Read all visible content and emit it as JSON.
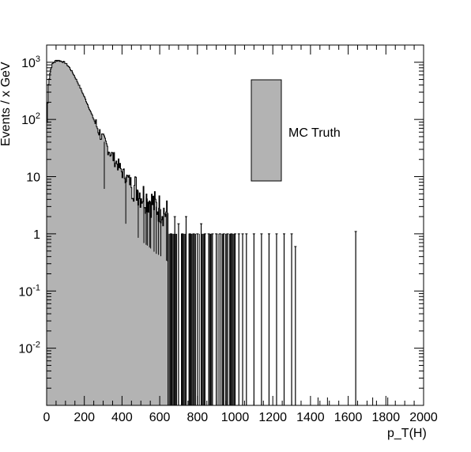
{
  "chart_data": {
    "type": "histogram",
    "title": "",
    "xlabel": "p_T(H)",
    "ylabel": "Events / x GeV",
    "xlim": [
      0,
      2000
    ],
    "ylim": [
      0.001,
      2000
    ],
    "yscale": "log",
    "grid": false,
    "legend": {
      "placement": "top-right",
      "entries": [
        "MC Truth"
      ],
      "fill_color": "#b3b3b3"
    },
    "x_ticks": [
      "0",
      "200",
      "400",
      "600",
      "800",
      "1000",
      "1200",
      "1400",
      "1600",
      "1800",
      "2000"
    ],
    "y_ticks": [
      {
        "base": "10",
        "exp": "-2",
        "value": 0.01
      },
      {
        "base": "10",
        "exp": "-1",
        "value": 0.1
      },
      {
        "base": "1",
        "exp": "",
        "value": 1
      },
      {
        "base": "10",
        "exp": "",
        "value": 10
      },
      {
        "base": "10",
        "exp": "2",
        "value": 100
      },
      {
        "base": "10",
        "exp": "3",
        "value": 1000
      }
    ],
    "series": [
      {
        "name": "MC Truth",
        "fill": "#b3b3b3",
        "bins_x": [
          0,
          10,
          20,
          30,
          40,
          50,
          60,
          70,
          80,
          90,
          100,
          120,
          140,
          160,
          180,
          200,
          220,
          240,
          260,
          280,
          300,
          320,
          340,
          360,
          380,
          400,
          420,
          440,
          460,
          480,
          500,
          520,
          540,
          560,
          580,
          600,
          620,
          640
        ],
        "bins_y": [
          60,
          420,
          720,
          920,
          1020,
          1070,
          1080,
          1060,
          1040,
          1010,
          970,
          820,
          640,
          480,
          350,
          250,
          175,
          120,
          85,
          60,
          44,
          34,
          26,
          20,
          16,
          12,
          10,
          8.5,
          7,
          6,
          5,
          4.5,
          4,
          3.5,
          3,
          2.8,
          2.5,
          2.2
        ],
        "sparse_tail": [
          [
            660,
            1
          ],
          [
            680,
            2
          ],
          [
            700,
            1.5
          ],
          [
            720,
            1
          ],
          [
            740,
            2
          ],
          [
            760,
            1
          ],
          [
            780,
            1
          ],
          [
            800,
            1
          ],
          [
            820,
            1.5
          ],
          [
            840,
            1
          ],
          [
            860,
            1
          ],
          [
            880,
            1
          ],
          [
            900,
            1
          ],
          [
            920,
            1
          ],
          [
            940,
            1
          ],
          [
            960,
            1
          ],
          [
            980,
            1
          ],
          [
            1000,
            1
          ],
          [
            1020,
            1
          ],
          [
            1040,
            1
          ],
          [
            1060,
            1
          ],
          [
            1100,
            1
          ],
          [
            1140,
            1
          ],
          [
            1180,
            1
          ],
          [
            1220,
            1
          ],
          [
            1260,
            1
          ],
          [
            1300,
            1
          ],
          [
            1320,
            0.6
          ],
          [
            1640,
            1.1
          ]
        ]
      }
    ]
  }
}
